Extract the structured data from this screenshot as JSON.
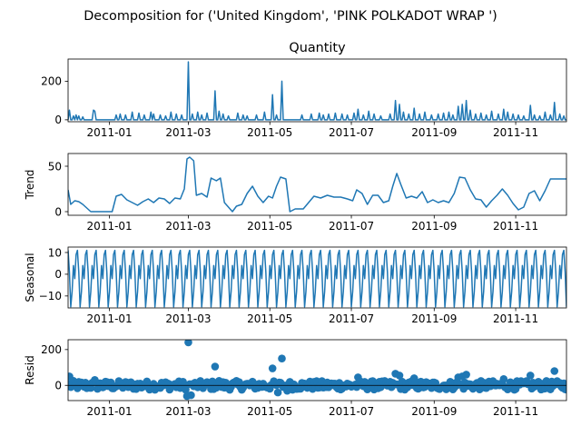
{
  "figure": {
    "suptitle": "Decomposition for ('United Kingdom', 'PINK POLKADOT WRAP ')"
  },
  "colors": {
    "line": "#1f77b4",
    "axis": "#000000",
    "background": "#ffffff"
  },
  "chart_data": [
    {
      "type": "line",
      "title": "Quantity",
      "ylabel": "",
      "x_start": "2010-12-01",
      "x_end": "2011-12-09",
      "xticks": [
        "2011-01",
        "2011-03",
        "2011-05",
        "2011-07",
        "2011-09",
        "2011-11"
      ],
      "ylim": [
        -10,
        315
      ],
      "yticks": [
        0,
        200
      ],
      "base_value": 0,
      "events": [
        {
          "date": "2010-12-02",
          "value": 50
        },
        {
          "date": "2010-12-05",
          "value": 20
        },
        {
          "date": "2010-12-07",
          "value": 25
        },
        {
          "date": "2010-12-09",
          "value": 20
        },
        {
          "date": "2010-12-12",
          "value": 15
        },
        {
          "date": "2010-12-20",
          "value": 50
        },
        {
          "date": "2010-12-21",
          "value": 45
        },
        {
          "date": "2011-01-06",
          "value": 25
        },
        {
          "date": "2011-01-09",
          "value": 30
        },
        {
          "date": "2011-01-13",
          "value": 25
        },
        {
          "date": "2011-01-18",
          "value": 40
        },
        {
          "date": "2011-01-23",
          "value": 35
        },
        {
          "date": "2011-01-27",
          "value": 25
        },
        {
          "date": "2011-02-01",
          "value": 40
        },
        {
          "date": "2011-02-03",
          "value": 30
        },
        {
          "date": "2011-02-08",
          "value": 25
        },
        {
          "date": "2011-02-12",
          "value": 20
        },
        {
          "date": "2011-02-16",
          "value": 40
        },
        {
          "date": "2011-02-20",
          "value": 30
        },
        {
          "date": "2011-02-24",
          "value": 25
        },
        {
          "date": "2011-03-01",
          "value": 300
        },
        {
          "date": "2011-03-04",
          "value": 30
        },
        {
          "date": "2011-03-08",
          "value": 40
        },
        {
          "date": "2011-03-11",
          "value": 25
        },
        {
          "date": "2011-03-15",
          "value": 35
        },
        {
          "date": "2011-03-21",
          "value": 150
        },
        {
          "date": "2011-03-24",
          "value": 45
        },
        {
          "date": "2011-03-27",
          "value": 30
        },
        {
          "date": "2011-03-31",
          "value": 20
        },
        {
          "date": "2011-04-07",
          "value": 35
        },
        {
          "date": "2011-04-11",
          "value": 25
        },
        {
          "date": "2011-04-14",
          "value": 20
        },
        {
          "date": "2011-04-21",
          "value": 25
        },
        {
          "date": "2011-04-27",
          "value": 40
        },
        {
          "date": "2011-05-03",
          "value": 130
        },
        {
          "date": "2011-05-06",
          "value": 25
        },
        {
          "date": "2011-05-10",
          "value": 200
        },
        {
          "date": "2011-05-25",
          "value": 25
        },
        {
          "date": "2011-06-01",
          "value": 30
        },
        {
          "date": "2011-06-07",
          "value": 35
        },
        {
          "date": "2011-06-10",
          "value": 25
        },
        {
          "date": "2011-06-14",
          "value": 30
        },
        {
          "date": "2011-06-19",
          "value": 35
        },
        {
          "date": "2011-06-24",
          "value": 30
        },
        {
          "date": "2011-06-28",
          "value": 25
        },
        {
          "date": "2011-07-03",
          "value": 35
        },
        {
          "date": "2011-07-06",
          "value": 55
        },
        {
          "date": "2011-07-10",
          "value": 25
        },
        {
          "date": "2011-07-14",
          "value": 45
        },
        {
          "date": "2011-07-18",
          "value": 30
        },
        {
          "date": "2011-07-23",
          "value": 20
        },
        {
          "date": "2011-07-30",
          "value": 30
        },
        {
          "date": "2011-08-03",
          "value": 100
        },
        {
          "date": "2011-08-06",
          "value": 80
        },
        {
          "date": "2011-08-09",
          "value": 40
        },
        {
          "date": "2011-08-13",
          "value": 30
        },
        {
          "date": "2011-08-17",
          "value": 60
        },
        {
          "date": "2011-08-21",
          "value": 30
        },
        {
          "date": "2011-08-25",
          "value": 40
        },
        {
          "date": "2011-08-30",
          "value": 25
        },
        {
          "date": "2011-09-04",
          "value": 30
        },
        {
          "date": "2011-09-08",
          "value": 35
        },
        {
          "date": "2011-09-12",
          "value": 40
        },
        {
          "date": "2011-09-15",
          "value": 25
        },
        {
          "date": "2011-09-19",
          "value": 70
        },
        {
          "date": "2011-09-22",
          "value": 80
        },
        {
          "date": "2011-09-25",
          "value": 100
        },
        {
          "date": "2011-09-28",
          "value": 50
        },
        {
          "date": "2011-10-02",
          "value": 30
        },
        {
          "date": "2011-10-06",
          "value": 35
        },
        {
          "date": "2011-10-10",
          "value": 25
        },
        {
          "date": "2011-10-14",
          "value": 45
        },
        {
          "date": "2011-10-19",
          "value": 30
        },
        {
          "date": "2011-10-23",
          "value": 55
        },
        {
          "date": "2011-10-26",
          "value": 40
        },
        {
          "date": "2011-10-30",
          "value": 30
        },
        {
          "date": "2011-11-03",
          "value": 25
        },
        {
          "date": "2011-11-07",
          "value": 20
        },
        {
          "date": "2011-11-12",
          "value": 75
        },
        {
          "date": "2011-11-15",
          "value": 25
        },
        {
          "date": "2011-11-19",
          "value": 20
        },
        {
          "date": "2011-11-23",
          "value": 40
        },
        {
          "date": "2011-11-27",
          "value": 25
        },
        {
          "date": "2011-11-30",
          "value": 90
        },
        {
          "date": "2011-12-04",
          "value": 30
        },
        {
          "date": "2011-12-07",
          "value": 20
        }
      ]
    },
    {
      "type": "line",
      "title": "",
      "ylabel": "Trend",
      "x_start": "2010-12-01",
      "x_end": "2011-12-09",
      "xticks": [
        "2011-01",
        "2011-03",
        "2011-05",
        "2011-07",
        "2011-09",
        "2011-11"
      ],
      "ylim": [
        -4,
        64
      ],
      "yticks": [
        0,
        50
      ],
      "points": [
        {
          "date": "2010-12-01",
          "value": 24
        },
        {
          "date": "2010-12-03",
          "value": 8
        },
        {
          "date": "2010-12-06",
          "value": 12
        },
        {
          "date": "2010-12-09",
          "value": 11
        },
        {
          "date": "2010-12-12",
          "value": 8
        },
        {
          "date": "2010-12-15",
          "value": 4
        },
        {
          "date": "2010-12-18",
          "value": 0
        },
        {
          "date": "2010-12-28",
          "value": 0
        },
        {
          "date": "2011-01-03",
          "value": 0
        },
        {
          "date": "2011-01-06",
          "value": 17
        },
        {
          "date": "2011-01-10",
          "value": 19
        },
        {
          "date": "2011-01-14",
          "value": 13
        },
        {
          "date": "2011-01-18",
          "value": 10
        },
        {
          "date": "2011-01-22",
          "value": 7
        },
        {
          "date": "2011-01-26",
          "value": 11
        },
        {
          "date": "2011-01-30",
          "value": 14
        },
        {
          "date": "2011-02-03",
          "value": 10
        },
        {
          "date": "2011-02-07",
          "value": 15
        },
        {
          "date": "2011-02-11",
          "value": 14
        },
        {
          "date": "2011-02-15",
          "value": 9
        },
        {
          "date": "2011-02-19",
          "value": 15
        },
        {
          "date": "2011-02-23",
          "value": 14
        },
        {
          "date": "2011-02-26",
          "value": 25
        },
        {
          "date": "2011-02-28",
          "value": 58
        },
        {
          "date": "2011-03-02",
          "value": 60
        },
        {
          "date": "2011-03-05",
          "value": 56
        },
        {
          "date": "2011-03-07",
          "value": 18
        },
        {
          "date": "2011-03-11",
          "value": 20
        },
        {
          "date": "2011-03-15",
          "value": 16
        },
        {
          "date": "2011-03-18",
          "value": 37
        },
        {
          "date": "2011-03-22",
          "value": 34
        },
        {
          "date": "2011-03-25",
          "value": 37
        },
        {
          "date": "2011-03-28",
          "value": 10
        },
        {
          "date": "2011-03-31",
          "value": 5
        },
        {
          "date": "2011-04-03",
          "value": 0
        },
        {
          "date": "2011-04-06",
          "value": 6
        },
        {
          "date": "2011-04-10",
          "value": 8
        },
        {
          "date": "2011-04-14",
          "value": 20
        },
        {
          "date": "2011-04-18",
          "value": 28
        },
        {
          "date": "2011-04-22",
          "value": 17
        },
        {
          "date": "2011-04-26",
          "value": 10
        },
        {
          "date": "2011-04-30",
          "value": 17
        },
        {
          "date": "2011-05-03",
          "value": 15
        },
        {
          "date": "2011-05-06",
          "value": 28
        },
        {
          "date": "2011-05-09",
          "value": 38
        },
        {
          "date": "2011-05-13",
          "value": 36
        },
        {
          "date": "2011-05-16",
          "value": 0
        },
        {
          "date": "2011-05-20",
          "value": 3
        },
        {
          "date": "2011-05-26",
          "value": 3
        },
        {
          "date": "2011-05-30",
          "value": 10
        },
        {
          "date": "2011-06-03",
          "value": 17
        },
        {
          "date": "2011-06-08",
          "value": 15
        },
        {
          "date": "2011-06-13",
          "value": 18
        },
        {
          "date": "2011-06-18",
          "value": 16
        },
        {
          "date": "2011-06-23",
          "value": 16
        },
        {
          "date": "2011-06-28",
          "value": 14
        },
        {
          "date": "2011-07-02",
          "value": 12
        },
        {
          "date": "2011-07-05",
          "value": 24
        },
        {
          "date": "2011-07-09",
          "value": 20
        },
        {
          "date": "2011-07-13",
          "value": 8
        },
        {
          "date": "2011-07-17",
          "value": 18
        },
        {
          "date": "2011-07-21",
          "value": 18
        },
        {
          "date": "2011-07-25",
          "value": 10
        },
        {
          "date": "2011-07-29",
          "value": 12
        },
        {
          "date": "2011-08-01",
          "value": 28
        },
        {
          "date": "2011-08-04",
          "value": 42
        },
        {
          "date": "2011-08-07",
          "value": 30
        },
        {
          "date": "2011-08-11",
          "value": 15
        },
        {
          "date": "2011-08-15",
          "value": 17
        },
        {
          "date": "2011-08-19",
          "value": 15
        },
        {
          "date": "2011-08-23",
          "value": 22
        },
        {
          "date": "2011-08-27",
          "value": 10
        },
        {
          "date": "2011-08-31",
          "value": 13
        },
        {
          "date": "2011-09-04",
          "value": 10
        },
        {
          "date": "2011-09-08",
          "value": 12
        },
        {
          "date": "2011-09-12",
          "value": 10
        },
        {
          "date": "2011-09-16",
          "value": 20
        },
        {
          "date": "2011-09-20",
          "value": 38
        },
        {
          "date": "2011-09-24",
          "value": 37
        },
        {
          "date": "2011-09-28",
          "value": 24
        },
        {
          "date": "2011-10-02",
          "value": 14
        },
        {
          "date": "2011-10-06",
          "value": 13
        },
        {
          "date": "2011-10-10",
          "value": 5
        },
        {
          "date": "2011-10-14",
          "value": 12
        },
        {
          "date": "2011-10-18",
          "value": 18
        },
        {
          "date": "2011-10-22",
          "value": 25
        },
        {
          "date": "2011-10-26",
          "value": 18
        },
        {
          "date": "2011-10-30",
          "value": 9
        },
        {
          "date": "2011-11-03",
          "value": 2
        },
        {
          "date": "2011-11-07",
          "value": 5
        },
        {
          "date": "2011-11-11",
          "value": 20
        },
        {
          "date": "2011-11-15",
          "value": 23
        },
        {
          "date": "2011-11-19",
          "value": 12
        },
        {
          "date": "2011-11-23",
          "value": 23
        },
        {
          "date": "2011-11-27",
          "value": 36
        },
        {
          "date": "2011-12-09",
          "value": 36
        }
      ]
    },
    {
      "type": "line",
      "title": "",
      "ylabel": "Seasonal",
      "x_start": "2010-12-01",
      "x_end": "2011-12-09",
      "xticks": [
        "2011-01",
        "2011-03",
        "2011-05",
        "2011-07",
        "2011-09",
        "2011-11"
      ],
      "ylim": [
        -15.5,
        12.5
      ],
      "yticks": [
        -10,
        0,
        10
      ],
      "period_days": 7,
      "weekly_pattern": [
        11,
        1,
        -15,
        -8,
        4,
        -2,
        9
      ]
    },
    {
      "type": "scatter",
      "title": "",
      "ylabel": "Resid",
      "x_start": "2010-12-01",
      "x_end": "2011-12-09",
      "xticks": [
        "2011-01",
        "2011-03",
        "2011-05",
        "2011-07",
        "2011-09",
        "2011-11"
      ],
      "ylim": [
        -85,
        255
      ],
      "yticks": [
        0,
        200
      ],
      "noise_range": [
        -25,
        25
      ],
      "points": [
        {
          "date": "2010-12-02",
          "value": 50
        },
        {
          "date": "2010-12-21",
          "value": 30
        },
        {
          "date": "2011-03-01",
          "value": 240
        },
        {
          "date": "2011-03-03",
          "value": -55
        },
        {
          "date": "2011-02-28",
          "value": -60
        },
        {
          "date": "2011-03-21",
          "value": 105
        },
        {
          "date": "2011-03-24",
          "value": 25
        },
        {
          "date": "2011-05-03",
          "value": 95
        },
        {
          "date": "2011-05-10",
          "value": 150
        },
        {
          "date": "2011-05-07",
          "value": -40
        },
        {
          "date": "2011-05-14",
          "value": -30
        },
        {
          "date": "2011-07-06",
          "value": 45
        },
        {
          "date": "2011-08-03",
          "value": 65
        },
        {
          "date": "2011-08-06",
          "value": 55
        },
        {
          "date": "2011-08-17",
          "value": 40
        },
        {
          "date": "2011-09-19",
          "value": 45
        },
        {
          "date": "2011-09-22",
          "value": 50
        },
        {
          "date": "2011-09-25",
          "value": 60
        },
        {
          "date": "2011-10-23",
          "value": 35
        },
        {
          "date": "2011-11-12",
          "value": 55
        },
        {
          "date": "2011-11-30",
          "value": 80
        }
      ]
    }
  ]
}
